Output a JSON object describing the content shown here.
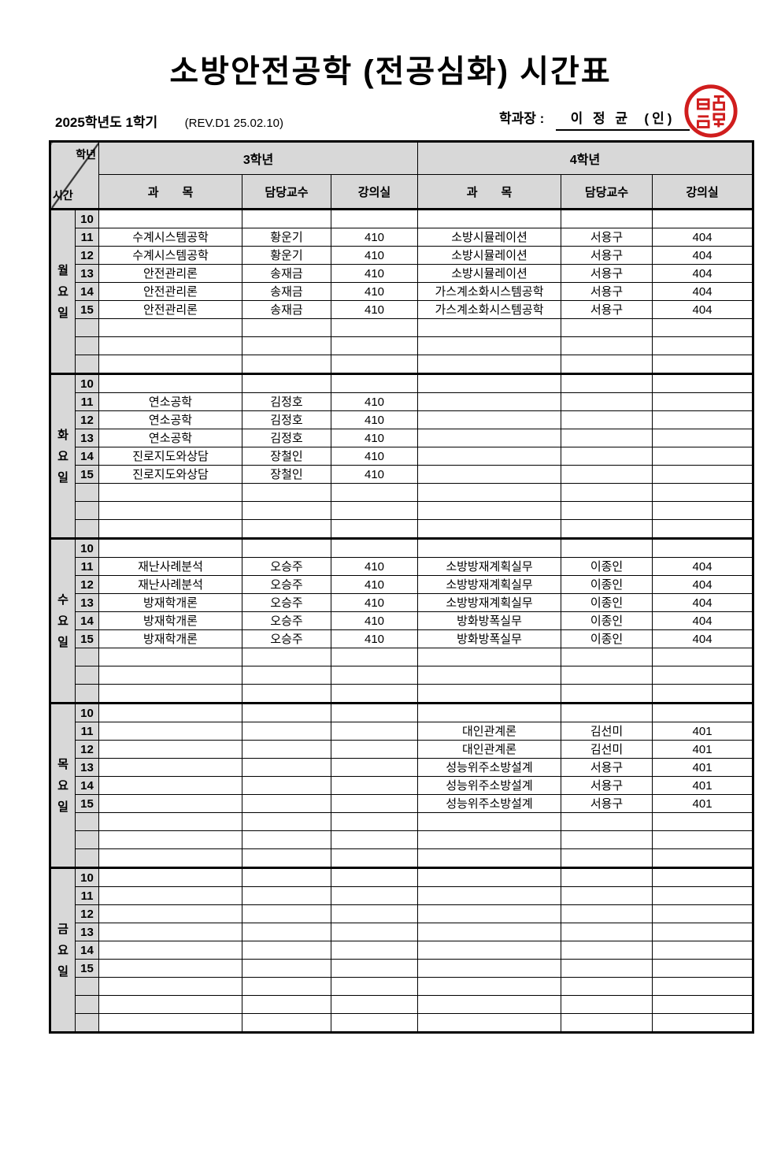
{
  "title": "소방안전공학 (전공심화) 시간표",
  "meta": {
    "term": "2025학년도 1학기",
    "revision": "(REV.D1 25.02.10)",
    "approver_label": "학과장 :",
    "approver_name": "이 정 균",
    "seal_note": "(인)"
  },
  "colors": {
    "header_bg": "#d8d8d8",
    "border": "#000000",
    "seal_red": "#d01d1d"
  },
  "table": {
    "corner": {
      "top": "학년",
      "bottom": "시간"
    },
    "grade_headers": [
      "3학년",
      "4학년"
    ],
    "column_headers": [
      "과　　목",
      "담당교수",
      "강의실"
    ],
    "hours": [
      "10",
      "11",
      "12",
      "13",
      "14",
      "15",
      "",
      "",
      ""
    ],
    "days": [
      {
        "label": "월\n요\n일",
        "rows": [
          {
            "s3": "",
            "p3": "",
            "r3": "",
            "s4": "",
            "p4": "",
            "r4": ""
          },
          {
            "s3": "수계시스템공학",
            "p3": "황운기",
            "r3": "410",
            "s4": "소방시뮬레이션",
            "p4": "서용구",
            "r4": "404"
          },
          {
            "s3": "수계시스템공학",
            "p3": "황운기",
            "r3": "410",
            "s4": "소방시뮬레이션",
            "p4": "서용구",
            "r4": "404"
          },
          {
            "s3": "안전관리론",
            "p3": "송재금",
            "r3": "410",
            "s4": "소방시뮬레이션",
            "p4": "서용구",
            "r4": "404"
          },
          {
            "s3": "안전관리론",
            "p3": "송재금",
            "r3": "410",
            "s4": "가스계소화시스템공학",
            "p4": "서용구",
            "r4": "404"
          },
          {
            "s3": "안전관리론",
            "p3": "송재금",
            "r3": "410",
            "s4": "가스계소화시스템공학",
            "p4": "서용구",
            "r4": "404"
          },
          {
            "s3": "",
            "p3": "",
            "r3": "",
            "s4": "",
            "p4": "",
            "r4": ""
          },
          {
            "s3": "",
            "p3": "",
            "r3": "",
            "s4": "",
            "p4": "",
            "r4": ""
          },
          {
            "s3": "",
            "p3": "",
            "r3": "",
            "s4": "",
            "p4": "",
            "r4": ""
          }
        ]
      },
      {
        "label": "화\n요\n일",
        "rows": [
          {
            "s3": "",
            "p3": "",
            "r3": "",
            "s4": "",
            "p4": "",
            "r4": ""
          },
          {
            "s3": "연소공학",
            "p3": "김정호",
            "r3": "410",
            "s4": "",
            "p4": "",
            "r4": ""
          },
          {
            "s3": "연소공학",
            "p3": "김정호",
            "r3": "410",
            "s4": "",
            "p4": "",
            "r4": ""
          },
          {
            "s3": "연소공학",
            "p3": "김정호",
            "r3": "410",
            "s4": "",
            "p4": "",
            "r4": ""
          },
          {
            "s3": "진로지도와상담",
            "p3": "장철인",
            "r3": "410",
            "s4": "",
            "p4": "",
            "r4": ""
          },
          {
            "s3": "진로지도와상담",
            "p3": "장철인",
            "r3": "410",
            "s4": "",
            "p4": "",
            "r4": ""
          },
          {
            "s3": "",
            "p3": "",
            "r3": "",
            "s4": "",
            "p4": "",
            "r4": ""
          },
          {
            "s3": "",
            "p3": "",
            "r3": "",
            "s4": "",
            "p4": "",
            "r4": ""
          },
          {
            "s3": "",
            "p3": "",
            "r3": "",
            "s4": "",
            "p4": "",
            "r4": ""
          }
        ]
      },
      {
        "label": "수\n요\n일",
        "rows": [
          {
            "s3": "",
            "p3": "",
            "r3": "",
            "s4": "",
            "p4": "",
            "r4": ""
          },
          {
            "s3": "재난사례분석",
            "p3": "오승주",
            "r3": "410",
            "s4": "소방방재계획실무",
            "p4": "이종인",
            "r4": "404"
          },
          {
            "s3": "재난사례분석",
            "p3": "오승주",
            "r3": "410",
            "s4": "소방방재계획실무",
            "p4": "이종인",
            "r4": "404"
          },
          {
            "s3": "방재학개론",
            "p3": "오승주",
            "r3": "410",
            "s4": "소방방재계획실무",
            "p4": "이종인",
            "r4": "404"
          },
          {
            "s3": "방재학개론",
            "p3": "오승주",
            "r3": "410",
            "s4": "방화방폭실무",
            "p4": "이종인",
            "r4": "404"
          },
          {
            "s3": "방재학개론",
            "p3": "오승주",
            "r3": "410",
            "s4": "방화방폭실무",
            "p4": "이종인",
            "r4": "404"
          },
          {
            "s3": "",
            "p3": "",
            "r3": "",
            "s4": "",
            "p4": "",
            "r4": ""
          },
          {
            "s3": "",
            "p3": "",
            "r3": "",
            "s4": "",
            "p4": "",
            "r4": ""
          },
          {
            "s3": "",
            "p3": "",
            "r3": "",
            "s4": "",
            "p4": "",
            "r4": ""
          }
        ]
      },
      {
        "label": "목\n요\n일",
        "rows": [
          {
            "s3": "",
            "p3": "",
            "r3": "",
            "s4": "",
            "p4": "",
            "r4": ""
          },
          {
            "s3": "",
            "p3": "",
            "r3": "",
            "s4": "대인관계론",
            "p4": "김선미",
            "r4": "401"
          },
          {
            "s3": "",
            "p3": "",
            "r3": "",
            "s4": "대인관계론",
            "p4": "김선미",
            "r4": "401"
          },
          {
            "s3": "",
            "p3": "",
            "r3": "",
            "s4": "성능위주소방설계",
            "p4": "서용구",
            "r4": "401"
          },
          {
            "s3": "",
            "p3": "",
            "r3": "",
            "s4": "성능위주소방설계",
            "p4": "서용구",
            "r4": "401"
          },
          {
            "s3": "",
            "p3": "",
            "r3": "",
            "s4": "성능위주소방설계",
            "p4": "서용구",
            "r4": "401"
          },
          {
            "s3": "",
            "p3": "",
            "r3": "",
            "s4": "",
            "p4": "",
            "r4": ""
          },
          {
            "s3": "",
            "p3": "",
            "r3": "",
            "s4": "",
            "p4": "",
            "r4": ""
          },
          {
            "s3": "",
            "p3": "",
            "r3": "",
            "s4": "",
            "p4": "",
            "r4": ""
          }
        ]
      },
      {
        "label": "금\n요\n일",
        "rows": [
          {
            "s3": "",
            "p3": "",
            "r3": "",
            "s4": "",
            "p4": "",
            "r4": ""
          },
          {
            "s3": "",
            "p3": "",
            "r3": "",
            "s4": "",
            "p4": "",
            "r4": ""
          },
          {
            "s3": "",
            "p3": "",
            "r3": "",
            "s4": "",
            "p4": "",
            "r4": ""
          },
          {
            "s3": "",
            "p3": "",
            "r3": "",
            "s4": "",
            "p4": "",
            "r4": ""
          },
          {
            "s3": "",
            "p3": "",
            "r3": "",
            "s4": "",
            "p4": "",
            "r4": ""
          },
          {
            "s3": "",
            "p3": "",
            "r3": "",
            "s4": "",
            "p4": "",
            "r4": ""
          },
          {
            "s3": "",
            "p3": "",
            "r3": "",
            "s4": "",
            "p4": "",
            "r4": ""
          },
          {
            "s3": "",
            "p3": "",
            "r3": "",
            "s4": "",
            "p4": "",
            "r4": ""
          },
          {
            "s3": "",
            "p3": "",
            "r3": "",
            "s4": "",
            "p4": "",
            "r4": ""
          }
        ]
      }
    ]
  }
}
